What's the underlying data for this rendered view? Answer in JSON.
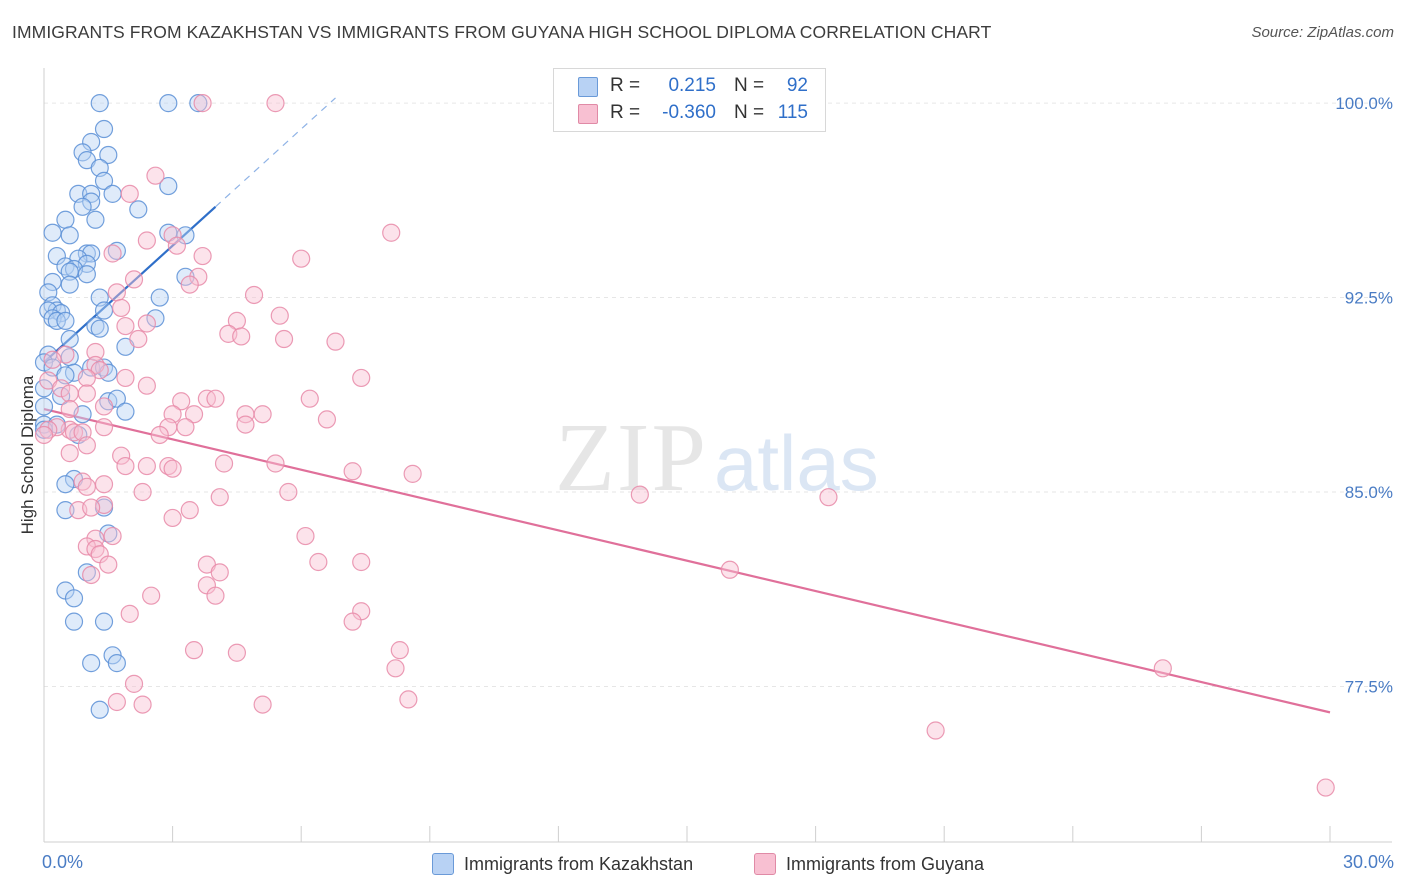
{
  "chart_data": {
    "type": "scatter",
    "title": "IMMIGRANTS FROM KAZAKHSTAN VS IMMIGRANTS FROM GUYANA HIGH SCHOOL DIPLOMA CORRELATION CHART",
    "source": "Source: ZipAtlas.com",
    "xlabel": "",
    "ylabel": "High School Diploma",
    "xlim": [
      0,
      30
    ],
    "ylim": [
      71.5,
      101.2
    ],
    "x_tick_labels": [
      "0.0%",
      "30.0%"
    ],
    "y_ticks": [
      {
        "value": 100.0,
        "label": "100.0%"
      },
      {
        "value": 92.5,
        "label": "92.5%"
      },
      {
        "value": 85.0,
        "label": "85.0%"
      },
      {
        "value": 77.5,
        "label": "77.5%"
      }
    ],
    "watermark": {
      "zip": "ZIP",
      "atlas": "atlas"
    },
    "stats": [
      {
        "r_label": "R =",
        "r_value": "0.215",
        "n_label": "N =",
        "n_value": "92"
      },
      {
        "r_label": "R =",
        "r_value": "-0.360",
        "n_label": "N =",
        "n_value": "115"
      }
    ],
    "series": [
      {
        "name": "Immigrants from Kazakhstan",
        "color": "#5b8fd6",
        "fill": "#b8d2f4",
        "line_color": "#2f6fc9",
        "trend": {
          "x1": 0.0,
          "y1": 90.0,
          "x2": 4.0,
          "y2": 96.0,
          "dash_to_x": 6.8,
          "dash_to_y": 100.2
        },
        "points": [
          [
            1.3,
            100.0
          ],
          [
            2.9,
            100.0
          ],
          [
            3.6,
            100.0
          ],
          [
            1.4,
            99.0
          ],
          [
            1.1,
            98.5
          ],
          [
            1.5,
            98.0
          ],
          [
            0.9,
            98.1
          ],
          [
            1.0,
            97.8
          ],
          [
            1.3,
            97.5
          ],
          [
            1.4,
            97.0
          ],
          [
            2.9,
            96.8
          ],
          [
            0.8,
            96.5
          ],
          [
            1.1,
            96.5
          ],
          [
            1.6,
            96.5
          ],
          [
            1.1,
            96.2
          ],
          [
            0.9,
            96.0
          ],
          [
            2.2,
            95.9
          ],
          [
            0.5,
            95.5
          ],
          [
            1.2,
            95.5
          ],
          [
            0.2,
            95.0
          ],
          [
            0.6,
            94.9
          ],
          [
            2.9,
            95.0
          ],
          [
            3.3,
            94.9
          ],
          [
            1.0,
            94.2
          ],
          [
            1.1,
            94.2
          ],
          [
            1.7,
            94.3
          ],
          [
            0.3,
            94.1
          ],
          [
            0.8,
            94.0
          ],
          [
            1.0,
            93.8
          ],
          [
            0.5,
            93.7
          ],
          [
            0.7,
            93.6
          ],
          [
            0.6,
            93.5
          ],
          [
            1.0,
            93.4
          ],
          [
            3.3,
            93.3
          ],
          [
            0.2,
            93.1
          ],
          [
            0.6,
            93.0
          ],
          [
            0.1,
            92.7
          ],
          [
            1.3,
            92.5
          ],
          [
            2.7,
            92.5
          ],
          [
            0.2,
            92.2
          ],
          [
            0.3,
            92.0
          ],
          [
            0.1,
            92.0
          ],
          [
            0.4,
            91.9
          ],
          [
            1.4,
            92.0
          ],
          [
            0.2,
            91.7
          ],
          [
            0.3,
            91.6
          ],
          [
            0.5,
            91.6
          ],
          [
            2.6,
            91.7
          ],
          [
            1.2,
            91.4
          ],
          [
            1.3,
            91.3
          ],
          [
            0.6,
            90.9
          ],
          [
            1.9,
            90.6
          ],
          [
            0.1,
            90.3
          ],
          [
            0.6,
            90.2
          ],
          [
            0.0,
            90.0
          ],
          [
            0.2,
            89.8
          ],
          [
            1.1,
            89.8
          ],
          [
            1.4,
            89.8
          ],
          [
            0.7,
            89.6
          ],
          [
            0.5,
            89.5
          ],
          [
            1.5,
            89.6
          ],
          [
            0.0,
            89.0
          ],
          [
            0.4,
            88.7
          ],
          [
            1.5,
            88.5
          ],
          [
            1.7,
            88.6
          ],
          [
            0.0,
            88.3
          ],
          [
            1.9,
            88.1
          ],
          [
            0.9,
            88.0
          ],
          [
            0.0,
            87.6
          ],
          [
            0.3,
            87.6
          ],
          [
            0.0,
            87.4
          ],
          [
            0.8,
            87.2
          ],
          [
            0.7,
            85.5
          ],
          [
            0.5,
            85.3
          ],
          [
            0.5,
            84.3
          ],
          [
            1.4,
            84.4
          ],
          [
            1.5,
            83.4
          ],
          [
            1.0,
            81.9
          ],
          [
            0.5,
            81.2
          ],
          [
            0.7,
            80.9
          ],
          [
            0.7,
            80.0
          ],
          [
            1.4,
            80.0
          ],
          [
            1.6,
            78.7
          ],
          [
            1.1,
            78.4
          ],
          [
            1.7,
            78.4
          ],
          [
            1.3,
            76.6
          ]
        ]
      },
      {
        "name": "Immigrants from Guyana",
        "color": "#e889a8",
        "fill": "#f8c0d2",
        "line_color": "#e0709a",
        "trend": {
          "x1": 0.0,
          "y1": 88.2,
          "x2": 30.0,
          "y2": 76.5
        },
        "points": [
          [
            3.7,
            100.0
          ],
          [
            5.4,
            100.0
          ],
          [
            2.6,
            97.2
          ],
          [
            2.0,
            96.5
          ],
          [
            8.1,
            95.0
          ],
          [
            3.0,
            94.9
          ],
          [
            2.4,
            94.7
          ],
          [
            3.1,
            94.5
          ],
          [
            3.7,
            94.1
          ],
          [
            6.0,
            94.0
          ],
          [
            1.6,
            94.2
          ],
          [
            3.6,
            93.3
          ],
          [
            2.1,
            93.2
          ],
          [
            3.4,
            93.0
          ],
          [
            1.7,
            92.7
          ],
          [
            4.9,
            92.6
          ],
          [
            1.8,
            92.1
          ],
          [
            5.5,
            91.8
          ],
          [
            4.5,
            91.6
          ],
          [
            2.4,
            91.5
          ],
          [
            1.9,
            91.4
          ],
          [
            4.3,
            91.1
          ],
          [
            4.6,
            91.0
          ],
          [
            2.2,
            90.9
          ],
          [
            5.6,
            90.9
          ],
          [
            6.8,
            90.8
          ],
          [
            1.2,
            90.4
          ],
          [
            0.5,
            90.3
          ],
          [
            0.2,
            90.1
          ],
          [
            1.2,
            89.9
          ],
          [
            1.3,
            89.7
          ],
          [
            1.9,
            89.4
          ],
          [
            1.0,
            89.4
          ],
          [
            0.1,
            89.3
          ],
          [
            7.4,
            89.4
          ],
          [
            2.4,
            89.1
          ],
          [
            0.4,
            89.0
          ],
          [
            0.6,
            88.8
          ],
          [
            1.0,
            88.8
          ],
          [
            3.8,
            88.6
          ],
          [
            4.0,
            88.6
          ],
          [
            3.2,
            88.5
          ],
          [
            6.2,
            88.6
          ],
          [
            1.4,
            88.3
          ],
          [
            0.6,
            88.2
          ],
          [
            3.0,
            88.0
          ],
          [
            3.5,
            88.0
          ],
          [
            4.7,
            88.0
          ],
          [
            5.1,
            88.0
          ],
          [
            6.6,
            87.8
          ],
          [
            2.9,
            87.5
          ],
          [
            4.7,
            87.6
          ],
          [
            0.6,
            87.4
          ],
          [
            1.4,
            87.5
          ],
          [
            0.7,
            87.3
          ],
          [
            0.3,
            87.5
          ],
          [
            0.1,
            87.4
          ],
          [
            2.7,
            87.2
          ],
          [
            3.3,
            87.5
          ],
          [
            0.9,
            87.3
          ],
          [
            0.0,
            87.2
          ],
          [
            1.0,
            86.8
          ],
          [
            1.8,
            86.4
          ],
          [
            0.6,
            86.5
          ],
          [
            4.2,
            86.1
          ],
          [
            5.4,
            86.1
          ],
          [
            1.9,
            86.0
          ],
          [
            2.4,
            86.0
          ],
          [
            2.9,
            86.0
          ],
          [
            3.0,
            85.9
          ],
          [
            7.2,
            85.8
          ],
          [
            8.6,
            85.7
          ],
          [
            0.9,
            85.4
          ],
          [
            1.4,
            85.3
          ],
          [
            1.0,
            85.2
          ],
          [
            2.3,
            85.0
          ],
          [
            5.7,
            85.0
          ],
          [
            13.9,
            84.9
          ],
          [
            18.3,
            84.8
          ],
          [
            4.1,
            84.8
          ],
          [
            1.4,
            84.5
          ],
          [
            0.8,
            84.3
          ],
          [
            1.1,
            84.4
          ],
          [
            3.4,
            84.3
          ],
          [
            3.0,
            84.0
          ],
          [
            6.1,
            83.3
          ],
          [
            1.6,
            83.3
          ],
          [
            1.2,
            83.2
          ],
          [
            1.0,
            82.9
          ],
          [
            1.2,
            82.8
          ],
          [
            1.3,
            82.6
          ],
          [
            7.4,
            82.3
          ],
          [
            6.4,
            82.3
          ],
          [
            3.8,
            82.2
          ],
          [
            1.5,
            82.2
          ],
          [
            4.1,
            81.9
          ],
          [
            1.1,
            81.8
          ],
          [
            3.8,
            81.4
          ],
          [
            2.5,
            81.0
          ],
          [
            4.0,
            81.0
          ],
          [
            16.0,
            82.0
          ],
          [
            7.4,
            80.4
          ],
          [
            2.0,
            80.3
          ],
          [
            7.2,
            80.0
          ],
          [
            3.5,
            78.9
          ],
          [
            4.5,
            78.8
          ],
          [
            8.3,
            78.9
          ],
          [
            8.2,
            78.2
          ],
          [
            2.1,
            77.6
          ],
          [
            8.5,
            77.0
          ],
          [
            2.3,
            76.8
          ],
          [
            1.7,
            76.9
          ],
          [
            5.1,
            76.8
          ],
          [
            26.1,
            78.2
          ],
          [
            20.8,
            75.8
          ],
          [
            29.9,
            73.6
          ]
        ]
      }
    ]
  }
}
